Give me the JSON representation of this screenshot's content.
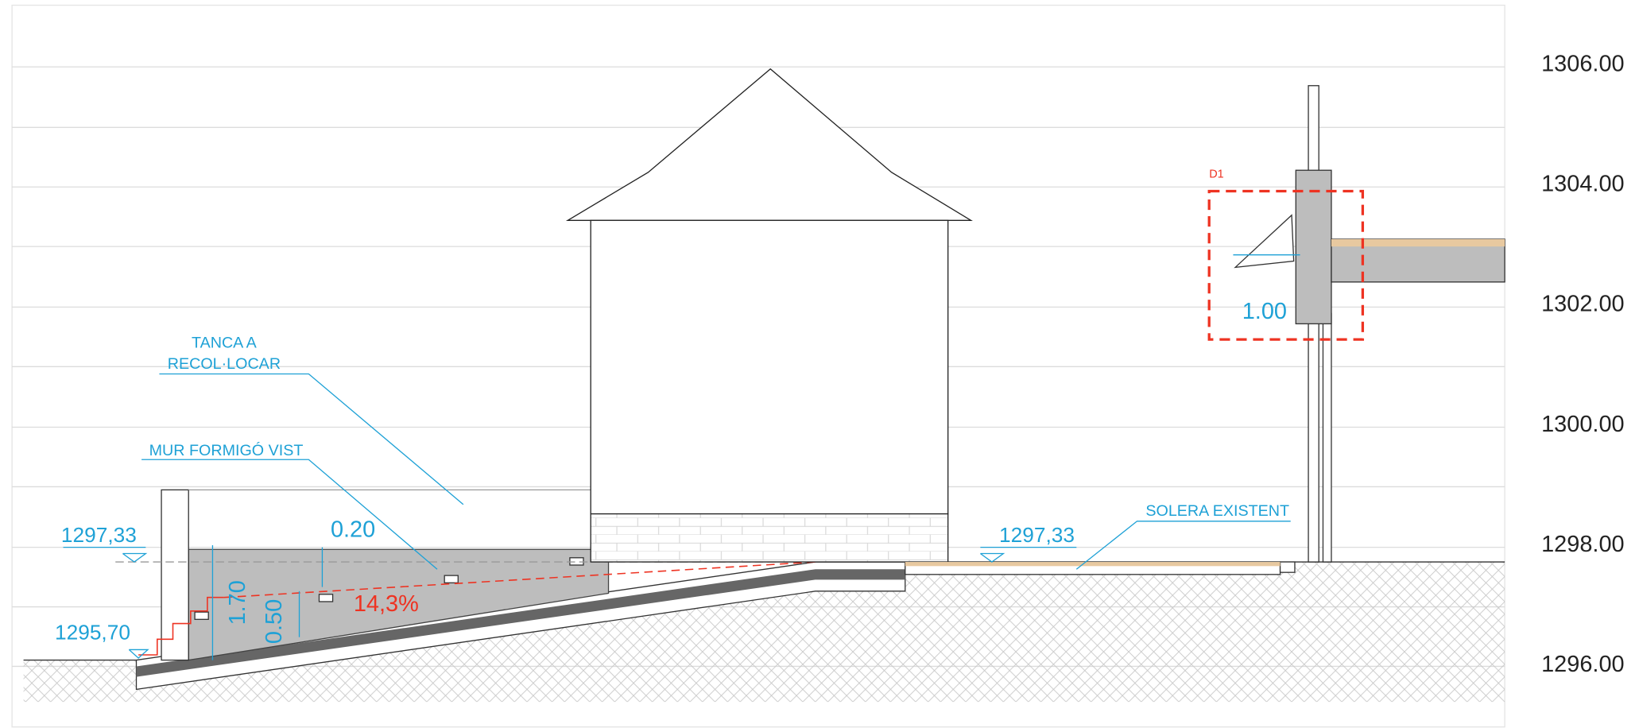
{
  "elevation_labels": [
    "1306.00",
    "1304.00",
    "1302.00",
    "1300.00",
    "1298.00",
    "1296.00"
  ],
  "annotations": {
    "fence": [
      "TANCA A",
      "RECOL·LOCAR"
    ],
    "wall": "MUR FORMIGÓ VIST",
    "slab": "SOLERA EXISTENT",
    "detail": "D1"
  },
  "levels": [
    "1297,33",
    "1295,70",
    "1297,33"
  ],
  "dimensions": [
    "0.20",
    "1.70",
    "0.50",
    "1.00"
  ],
  "slope": "14,3%"
}
